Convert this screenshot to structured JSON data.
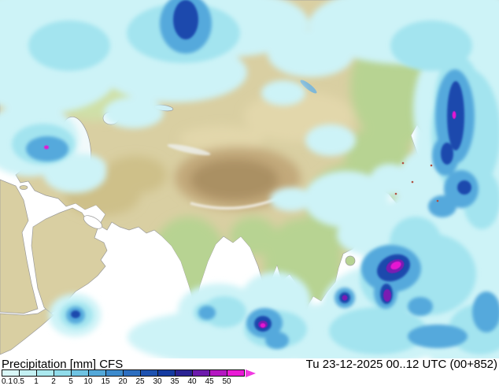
{
  "footer": {
    "title": "Precipitation [mm] CFS",
    "datetime": "Tu 23-12-2025 00..12 UTC (00+852)"
  },
  "legend": {
    "unit": "mm",
    "labels": [
      "0.1",
      "0.5",
      "1",
      "2",
      "5",
      "10",
      "15",
      "20",
      "25",
      "30",
      "35",
      "40",
      "45",
      "50"
    ],
    "cell_colors": [
      "#daf8f8",
      "#c4f1f3",
      "#abe9ef",
      "#90dcea",
      "#6fc3e2",
      "#53a8d9",
      "#3d8bcd",
      "#2c6ec0",
      "#1e52b0",
      "#143aa0",
      "#2b2394",
      "#6d1bac",
      "#b517c2",
      "#ea1bd6"
    ],
    "arrow_color": "#f13ae1"
  },
  "map": {
    "colors": {
      "ocean": "#ffffff",
      "land": "#d9cfa2",
      "land_green": "#b7d392",
      "land_green2": "#cfe0a8",
      "plateau_outer": "#c2a97a",
      "plateau_inner": "#aa9063",
      "desert_sand": "#e2d7ab",
      "highland_tan": "#cec089",
      "lake": "#f2fafb",
      "coastline": "#9a9a9a",
      "precip_1": "#cdf3f7",
      "precip_2": "#a3e4ef",
      "precip_3": "#55a9dc",
      "precip_4": "#1b4aad",
      "precip_5": "#7a1ab2",
      "precip_6": "#e718d2"
    }
  }
}
